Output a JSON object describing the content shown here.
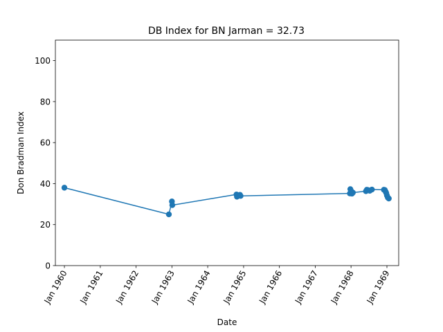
{
  "chart_data": {
    "type": "line",
    "title": "DB Index for BN Jarman = 32.73",
    "xlabel": "Date",
    "ylabel": "Don Bradman Index",
    "ylim": [
      0,
      110
    ],
    "xlim": [
      "1959-10-01",
      "1969-05-01"
    ],
    "yticks": [
      0,
      20,
      40,
      60,
      80,
      100
    ],
    "xticks": [
      {
        "date": "1960-01-01",
        "label": "Jan 1960"
      },
      {
        "date": "1961-01-01",
        "label": "Jan 1961"
      },
      {
        "date": "1962-01-01",
        "label": "Jan 1962"
      },
      {
        "date": "1963-01-01",
        "label": "Jan 1963"
      },
      {
        "date": "1964-01-01",
        "label": "Jan 1964"
      },
      {
        "date": "1965-01-01",
        "label": "Jan 1965"
      },
      {
        "date": "1966-01-01",
        "label": "Jan 1966"
      },
      {
        "date": "1967-01-01",
        "label": "Jan 1967"
      },
      {
        "date": "1968-01-01",
        "label": "Jan 1968"
      },
      {
        "date": "1969-01-01",
        "label": "Jan 1969"
      }
    ],
    "grid": false,
    "color": "#1f77b4",
    "series": [
      {
        "points": [
          {
            "date": "1960-01-01",
            "value": 38.0
          },
          {
            "date": "1962-12-01",
            "value": 25.0
          },
          {
            "date": "1963-01-01",
            "value": 31.3
          },
          {
            "date": "1963-01-05",
            "value": 29.5
          },
          {
            "date": "1964-10-20",
            "value": 34.7
          },
          {
            "date": "1964-10-25",
            "value": 33.6
          },
          {
            "date": "1964-11-25",
            "value": 34.5
          },
          {
            "date": "1964-12-01",
            "value": 34.0
          },
          {
            "date": "1967-12-20",
            "value": 35.2
          },
          {
            "date": "1967-12-25",
            "value": 37.3
          },
          {
            "date": "1968-01-05",
            "value": 36.2
          },
          {
            "date": "1968-01-10",
            "value": 35.1
          },
          {
            "date": "1968-01-20",
            "value": 35.6
          },
          {
            "date": "1968-06-01",
            "value": 36.3
          },
          {
            "date": "1968-06-10",
            "value": 37.0
          },
          {
            "date": "1968-06-20",
            "value": 36.9
          },
          {
            "date": "1968-07-10",
            "value": 36.5
          },
          {
            "date": "1968-08-01",
            "value": 37.1
          },
          {
            "date": "1968-12-01",
            "value": 37.0
          },
          {
            "date": "1968-12-10",
            "value": 36.9
          },
          {
            "date": "1968-12-20",
            "value": 36.0
          },
          {
            "date": "1968-12-25",
            "value": 35.4
          },
          {
            "date": "1969-01-01",
            "value": 34.2
          },
          {
            "date": "1969-01-10",
            "value": 33.2
          },
          {
            "date": "1969-01-20",
            "value": 32.73
          }
        ]
      }
    ]
  }
}
